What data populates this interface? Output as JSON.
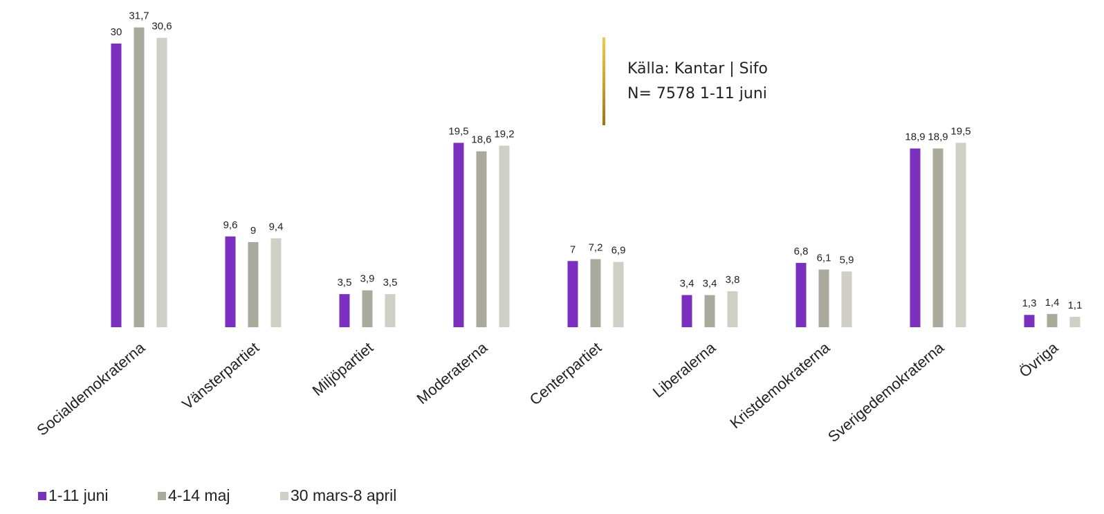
{
  "chart_data": {
    "type": "bar",
    "annotations": [
      "Källa: Kantar  |  Sifo",
      "N= 7578  1-11 juni"
    ],
    "categories": [
      "Socialdemokraterna",
      "Vänsterpartiet",
      "Miljöpartiet",
      "Moderaterna",
      "Centerpartiet",
      "Liberalerna",
      "Kristdemokraterna",
      "Sverigedemokraterna",
      "Övriga"
    ],
    "series": [
      {
        "name": "1-11 juni",
        "color": "#7b2fbe",
        "values": [
          30,
          9.6,
          3.5,
          19.5,
          7,
          3.4,
          6.8,
          18.9,
          1.3
        ],
        "value_labels": [
          "30",
          "9,6",
          "3,5",
          "19,5",
          "7",
          "3,4",
          "6,8",
          "18,9",
          "1,3"
        ]
      },
      {
        "name": "4-14 maj",
        "color": "#a9aa9b",
        "values": [
          31.7,
          9,
          3.9,
          18.6,
          7.2,
          3.4,
          6.1,
          18.9,
          1.4
        ],
        "value_labels": [
          "31,7",
          "9",
          "3,9",
          "18,6",
          "7,2",
          "3,4",
          "6,1",
          "18,9",
          "1,4"
        ]
      },
      {
        "name": "30 mars-8 april",
        "color": "#cfcfc6",
        "values": [
          30.6,
          9.4,
          3.5,
          19.2,
          6.9,
          3.8,
          5.9,
          19.5,
          1.1
        ],
        "value_labels": [
          "30,6",
          "9,4",
          "3,5",
          "19,2",
          "6,9",
          "3,8",
          "5,9",
          "19,5",
          "1,1"
        ]
      }
    ],
    "legend": "bottom-left"
  }
}
